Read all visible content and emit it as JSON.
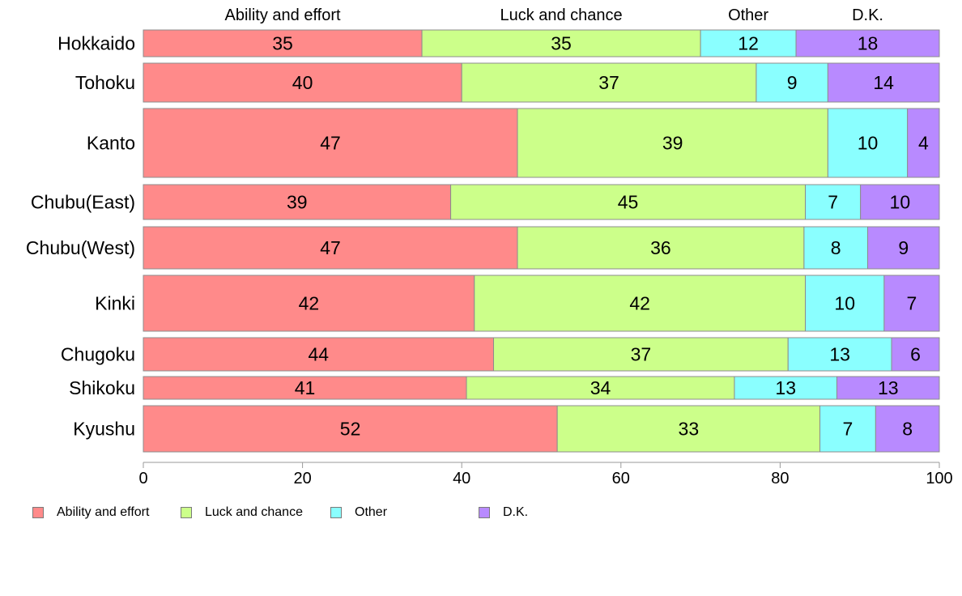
{
  "chart_data": {
    "type": "bar",
    "orientation": "horizontal",
    "stacked": true,
    "title": "",
    "xlabel": "",
    "ylabel": "",
    "xlim": [
      0,
      100
    ],
    "x_ticks": [
      0,
      20,
      40,
      60,
      80,
      100
    ],
    "grid": false,
    "legend_position": "bottom-left",
    "categories": [
      "Hokkaido",
      "Tohoku",
      "Kanto",
      "Chubu(East)",
      "Chubu(West)",
      "Kinki",
      "Chugoku",
      "Shikoku",
      "Kyushu"
    ],
    "series": [
      {
        "name": "Ability and effort",
        "color": "#FF8A8A",
        "values": [
          35,
          40,
          47,
          39,
          47,
          42,
          44,
          41,
          52
        ]
      },
      {
        "name": "Luck and chance",
        "color": "#CCFF8A",
        "values": [
          35,
          37,
          39,
          45,
          36,
          42,
          37,
          34,
          33
        ]
      },
      {
        "name": "Other",
        "color": "#8AFFFF",
        "values": [
          12,
          9,
          10,
          7,
          8,
          10,
          13,
          13,
          7
        ]
      },
      {
        "name": "D.K.",
        "color": "#B88AFF",
        "values": [
          18,
          14,
          4,
          10,
          9,
          7,
          6,
          13,
          8
        ]
      }
    ]
  }
}
